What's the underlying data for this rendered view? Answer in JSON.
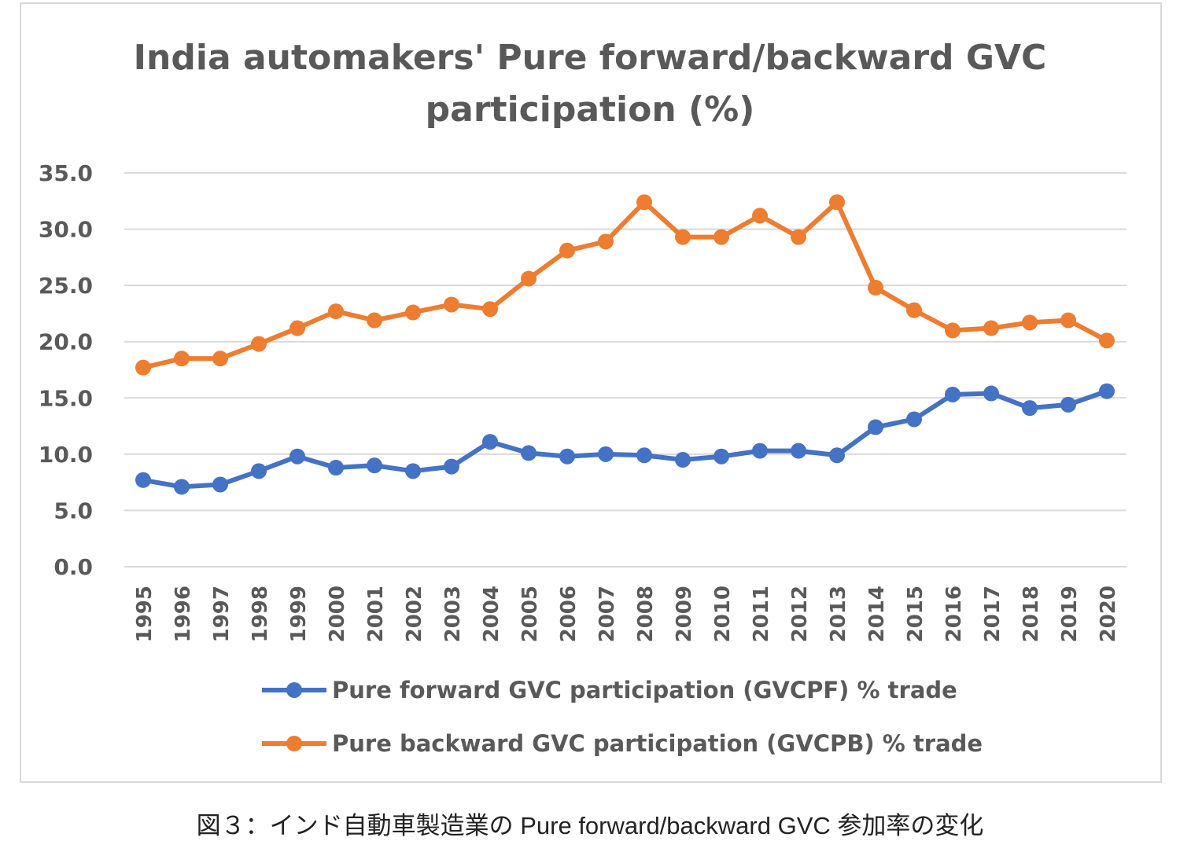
{
  "chart_data": {
    "type": "line",
    "title_lines": [
      "India automakers' Pure forward/backward GVC",
      "participation (%)"
    ],
    "xlabel": "",
    "ylabel": "",
    "ylim": [
      0,
      35
    ],
    "yticks": [
      "0.0",
      "5.0",
      "10.0",
      "15.0",
      "20.0",
      "25.0",
      "30.0",
      "35.0"
    ],
    "grid": true,
    "legend_position": "bottom",
    "categories": [
      "1995",
      "1996",
      "1997",
      "1998",
      "1999",
      "2000",
      "2001",
      "2002",
      "2003",
      "2004",
      "2005",
      "2006",
      "2007",
      "2008",
      "2009",
      "2010",
      "2011",
      "2012",
      "2013",
      "2014",
      "2015",
      "2016",
      "2017",
      "2018",
      "2019",
      "2020"
    ],
    "series": [
      {
        "name": "Pure forward GVC participation (GVCPF) % trade",
        "color": "#4472c4",
        "values": [
          7.7,
          7.1,
          7.3,
          8.5,
          9.8,
          8.8,
          9.0,
          8.5,
          8.9,
          11.1,
          10.1,
          9.8,
          10.0,
          9.9,
          9.5,
          9.8,
          10.3,
          10.3,
          9.9,
          12.4,
          13.1,
          15.3,
          15.4,
          14.1,
          14.4,
          15.6
        ]
      },
      {
        "name": "Pure backward GVC participation (GVCPB) % trade",
        "color": "#ed7d31",
        "values": [
          17.7,
          18.5,
          18.5,
          19.8,
          21.2,
          22.7,
          21.9,
          22.6,
          23.3,
          22.9,
          25.6,
          28.1,
          28.9,
          32.4,
          29.3,
          29.3,
          31.2,
          29.3,
          32.4,
          24.8,
          22.8,
          21.0,
          21.2,
          21.7,
          21.9,
          20.1
        ]
      }
    ]
  },
  "caption": "図３：インド自動車製造業の Pure forward/backward GVC 参加率の変化"
}
